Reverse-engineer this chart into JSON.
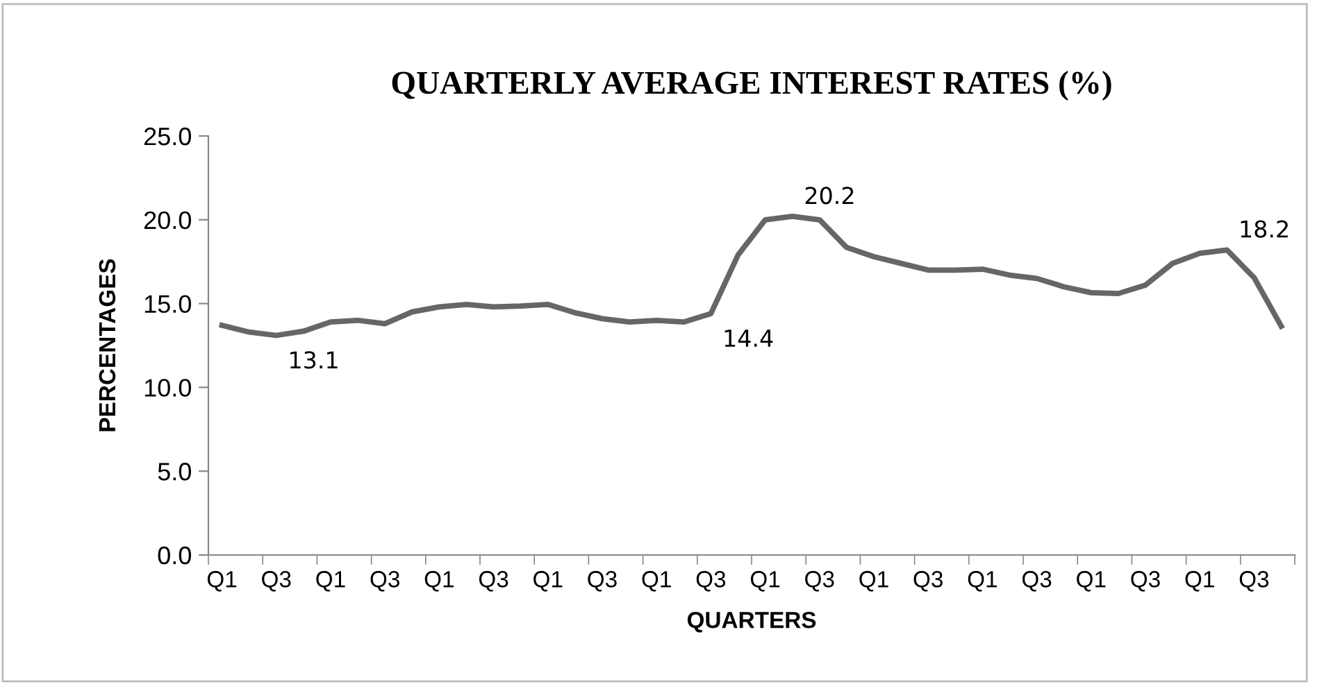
{
  "chart_data": {
    "type": "line",
    "title": "QUARTERLY AVERAGE INTEREST RATES (%)",
    "xlabel": "QUARTERS",
    "ylabel": "PERCENTAGES",
    "categories": [
      "Q1",
      null,
      "Q3",
      null,
      "Q1",
      null,
      "Q3",
      null,
      "Q1",
      null,
      "Q3",
      null,
      "Q1",
      null,
      "Q3",
      null,
      "Q1",
      null,
      "Q3",
      null,
      "Q1",
      null,
      "Q3",
      null,
      "Q1",
      null,
      "Q3",
      null,
      "Q1",
      null,
      "Q3",
      null,
      "Q1",
      null,
      "Q3",
      null,
      "Q1",
      null,
      "Q3",
      null
    ],
    "series": [
      {
        "color": "#666666",
        "values": [
          13.7,
          13.3,
          13.1,
          13.35,
          13.9,
          14.0,
          13.8,
          14.5,
          14.8,
          14.95,
          14.8,
          14.85,
          14.95,
          14.45,
          14.1,
          13.9,
          14.0,
          13.9,
          14.4,
          17.9,
          20.0,
          20.2,
          20.0,
          18.35,
          17.8,
          17.4,
          17.0,
          17.0,
          17.05,
          16.7,
          16.5,
          16.0,
          15.65,
          15.6,
          16.1,
          17.4,
          18.0,
          18.2,
          16.55,
          13.65
        ],
        "value_labels": [
          null,
          null,
          "13.1",
          null,
          null,
          null,
          null,
          null,
          null,
          null,
          null,
          null,
          null,
          null,
          null,
          null,
          null,
          null,
          "14.4",
          null,
          null,
          "20.2",
          null,
          null,
          null,
          null,
          null,
          null,
          null,
          null,
          null,
          null,
          null,
          null,
          null,
          null,
          null,
          "18.2",
          null,
          null
        ]
      }
    ],
    "ylim": [
      0,
      25
    ],
    "yticks": [
      {
        "value": 0,
        "label": "0.0"
      },
      {
        "value": 5,
        "label": "5.0"
      },
      {
        "value": 10,
        "label": "10.0"
      },
      {
        "value": 15,
        "label": "15.0"
      },
      {
        "value": 20,
        "label": "20.0"
      },
      {
        "value": 25,
        "label": "25.0"
      }
    ],
    "grid": false,
    "legend": false,
    "marker": "none",
    "line_style": "solid"
  }
}
